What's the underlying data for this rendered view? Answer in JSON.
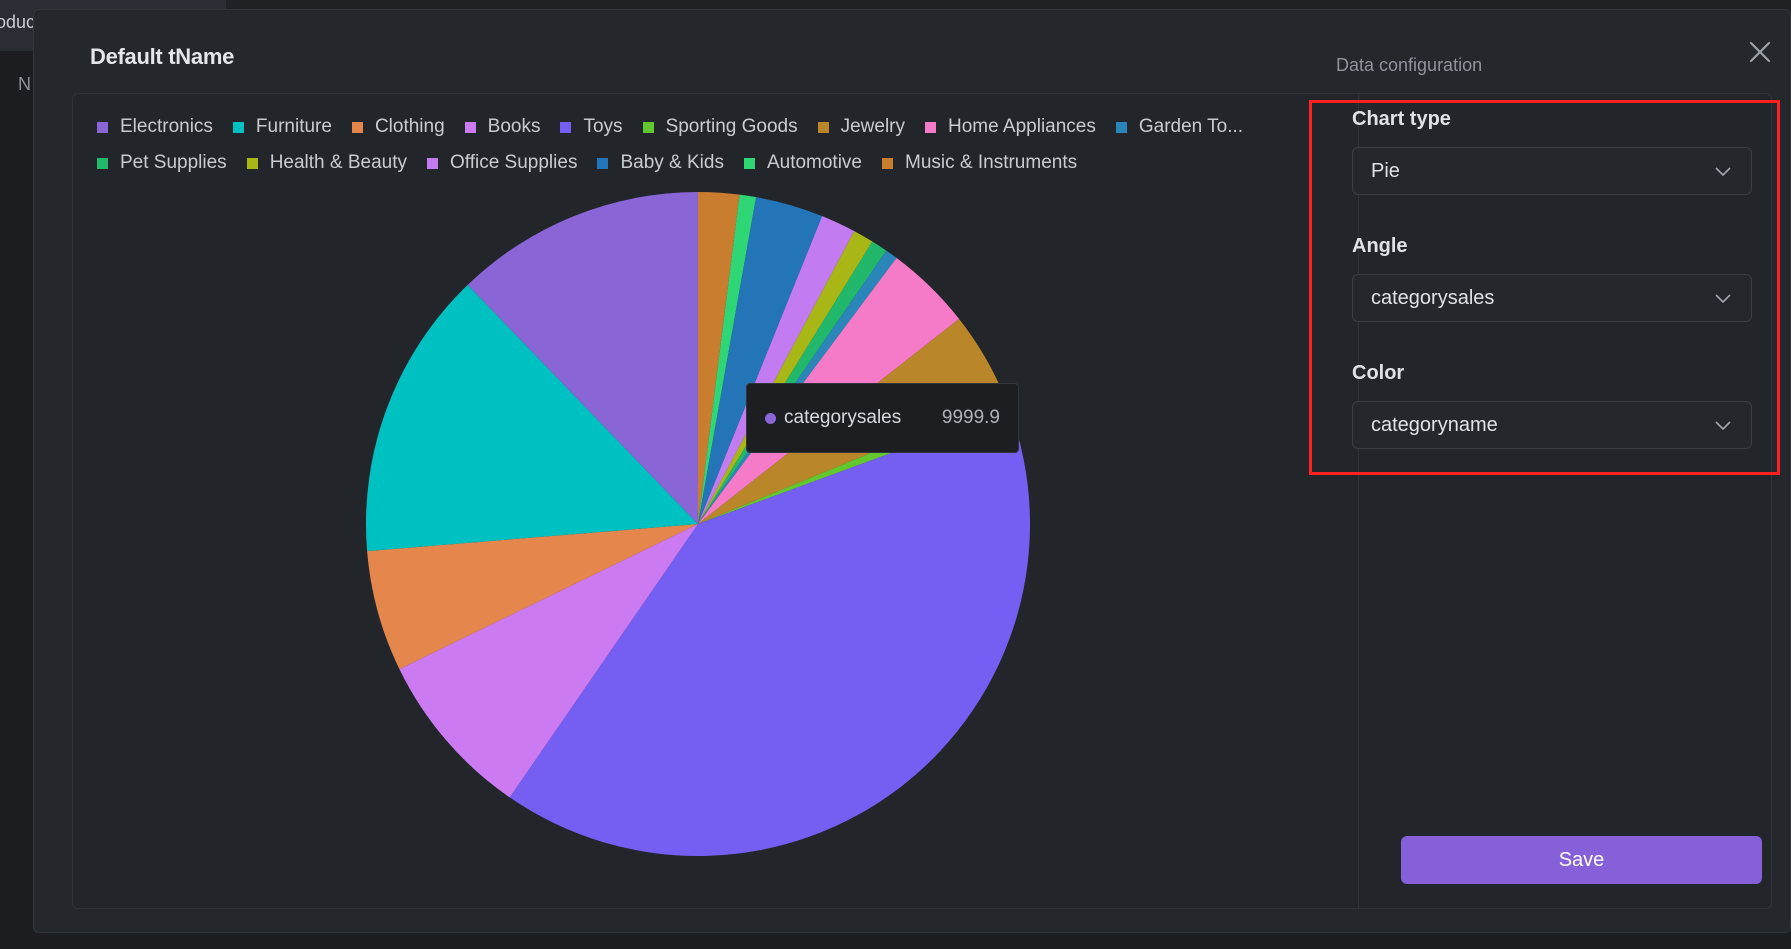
{
  "background": {
    "tab_text": "oduc",
    "side_letter": "N"
  },
  "modal": {
    "title": "Default tName",
    "config_title": "Data configuration",
    "close_icon": "close-icon"
  },
  "chart_data": {
    "type": "pie",
    "legend_placement": "top",
    "series_name": "categorysales",
    "slices": [
      {
        "name": "Music & Instruments",
        "value": 2.0,
        "color": "#c97d2f"
      },
      {
        "name": "Automotive",
        "value": 0.8,
        "color": "#2fd675"
      },
      {
        "name": "Baby & Kids",
        "value": 3.3,
        "color": "#2475b8"
      },
      {
        "name": "Office Supplies",
        "value": 1.7,
        "color": "#c27bf0"
      },
      {
        "name": "Health & Beauty",
        "value": 1.0,
        "color": "#a8b716"
      },
      {
        "name": "Pet Supplies",
        "value": 0.8,
        "color": "#22b86b"
      },
      {
        "name": "Garden To...",
        "value": 0.6,
        "color": "#2a86b8"
      },
      {
        "name": "Home Appliances",
        "value": 4.2,
        "color": "#f57ac7"
      },
      {
        "name": "Jewelry",
        "value": 4.4,
        "color": "#b9862a"
      },
      {
        "name": "Sporting Goods",
        "value": 0.6,
        "color": "#63c72e"
      },
      {
        "name": "Toys",
        "value": 40.2,
        "color": "#745ff2"
      },
      {
        "name": "Books",
        "value": 8.2,
        "color": "#cc7af2"
      },
      {
        "name": "Clothing",
        "value": 5.9,
        "color": "#e5864c"
      },
      {
        "name": "Furniture",
        "value": 14.1,
        "color": "#00c1c1"
      },
      {
        "name": "Electronics",
        "value": 12.2,
        "color": "#8a65d6"
      }
    ],
    "legend": [
      {
        "label": "Electronics",
        "color": "#8a65d6"
      },
      {
        "label": "Furniture",
        "color": "#00c1c1"
      },
      {
        "label": "Clothing",
        "color": "#e5864c"
      },
      {
        "label": "Books",
        "color": "#cc7af2"
      },
      {
        "label": "Toys",
        "color": "#745ff2"
      },
      {
        "label": "Sporting Goods",
        "color": "#63c72e"
      },
      {
        "label": "Jewelry",
        "color": "#b9862a"
      },
      {
        "label": "Home Appliances",
        "color": "#f57ac7"
      },
      {
        "label": "Garden To...",
        "color": "#2a86b8"
      },
      {
        "label": "Pet Supplies",
        "color": "#22b86b"
      },
      {
        "label": "Health & Beauty",
        "color": "#a8b716"
      },
      {
        "label": "Office Supplies",
        "color": "#c27bf0"
      },
      {
        "label": "Baby & Kids",
        "color": "#2475b8"
      },
      {
        "label": "Automotive",
        "color": "#2fd675"
      },
      {
        "label": "Music & Instruments",
        "color": "#c97d2f"
      }
    ],
    "tooltip": {
      "key": "categorysales",
      "value": "9999.9",
      "dot_color": "#8a65d6"
    }
  },
  "config": {
    "chart_type_label": "Chart type",
    "chart_type_value": "Pie",
    "angle_label": "Angle",
    "angle_value": "categorysales",
    "color_label": "Color",
    "color_value": "categoryname",
    "save_label": "Save"
  }
}
